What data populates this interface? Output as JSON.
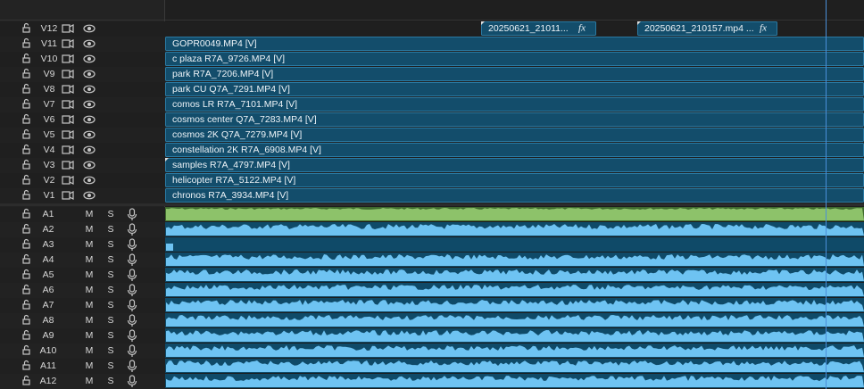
{
  "video_tracks": [
    {
      "name": "V12",
      "clips": [
        {
          "label": "20250621_21011...",
          "fx": "fx"
        },
        {
          "label": "20250621_210157.mp4 ...",
          "fx": "fx"
        }
      ]
    },
    {
      "name": "V11",
      "clips": [
        {
          "label": "GOPR0049.MP4 [V]"
        }
      ]
    },
    {
      "name": "V10",
      "clips": [
        {
          "label": "c plaza R7A_9726.MP4 [V]"
        }
      ]
    },
    {
      "name": "V9",
      "clips": [
        {
          "label": "park R7A_7206.MP4 [V]"
        }
      ]
    },
    {
      "name": "V8",
      "clips": [
        {
          "label": "park CU Q7A_7291.MP4 [V]"
        }
      ]
    },
    {
      "name": "V7",
      "clips": [
        {
          "label": "comos LR R7A_7101.MP4 [V]"
        }
      ]
    },
    {
      "name": "V6",
      "clips": [
        {
          "label": "cosmos center Q7A_7283.MP4 [V]"
        }
      ]
    },
    {
      "name": "V5",
      "clips": [
        {
          "label": "cosmos 2K Q7A_7279.MP4 [V]"
        }
      ]
    },
    {
      "name": "V4",
      "clips": [
        {
          "label": "constellation 2K R7A_6908.MP4 [V]"
        }
      ]
    },
    {
      "name": "V3",
      "clips": [
        {
          "label": "samples R7A_4797.MP4 [V]"
        }
      ]
    },
    {
      "name": "V2",
      "clips": [
        {
          "label": "helicopter R7A_5122.MP4 [V]"
        }
      ]
    },
    {
      "name": "V1",
      "clips": [
        {
          "label": "chronos R7A_3934.MP4 [V]"
        }
      ]
    }
  ],
  "audio_tracks": [
    {
      "name": "A1",
      "mute": "M",
      "solo": "S"
    },
    {
      "name": "A2",
      "mute": "M",
      "solo": "S"
    },
    {
      "name": "A3",
      "mute": "M",
      "solo": "S"
    },
    {
      "name": "A4",
      "mute": "M",
      "solo": "S"
    },
    {
      "name": "A5",
      "mute": "M",
      "solo": "S"
    },
    {
      "name": "A6",
      "mute": "M",
      "solo": "S"
    },
    {
      "name": "A7",
      "mute": "M",
      "solo": "S"
    },
    {
      "name": "A8",
      "mute": "M",
      "solo": "S"
    },
    {
      "name": "A9",
      "mute": "M",
      "solo": "S"
    },
    {
      "name": "A10",
      "mute": "M",
      "solo": "S"
    },
    {
      "name": "A11",
      "mute": "M",
      "solo": "S"
    },
    {
      "name": "A12",
      "mute": "M",
      "solo": "S"
    }
  ]
}
